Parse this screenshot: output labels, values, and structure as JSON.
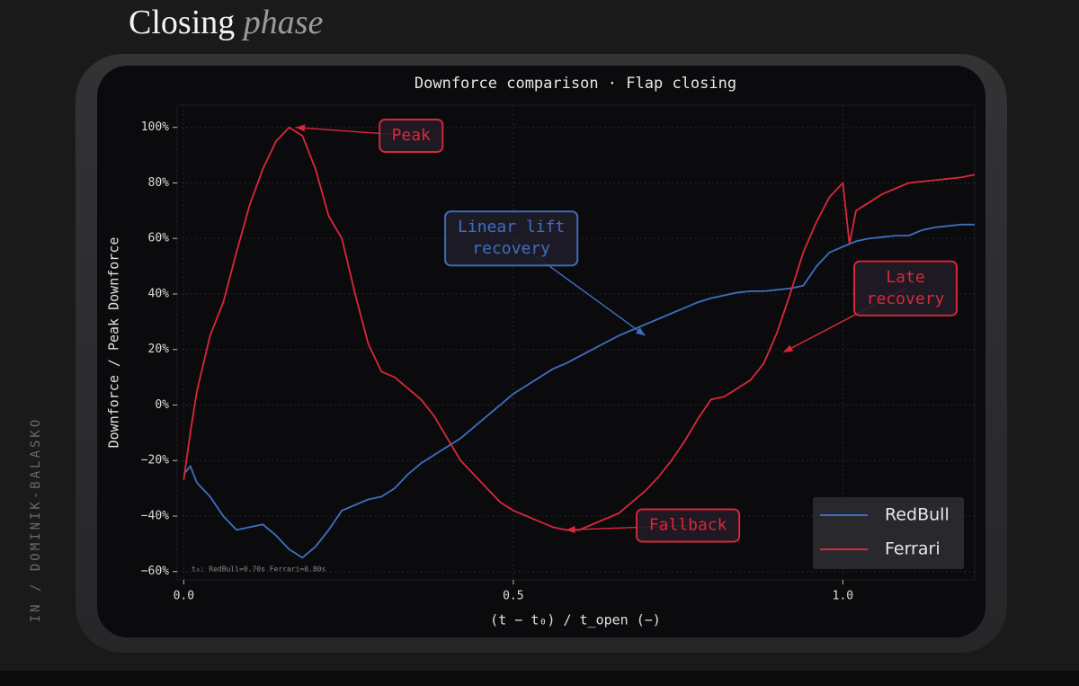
{
  "header": {
    "title": "Closing",
    "title_em": "phase"
  },
  "side_label": "IN / DOMINIK-BALASKO",
  "chart_data": {
    "type": "line",
    "title": "Downforce comparison  ·  Flap closing",
    "xlabel": "(t − t₀) / t_open  (−)",
    "ylabel": "Downforce / Peak Downforce",
    "note": "t₀: RedBull=0.70s   Ferrari=0.80s",
    "xlim": [
      -0.01,
      1.2
    ],
    "ylim": [
      -63,
      108
    ],
    "xticks": [
      {
        "value": 0,
        "label": "0.0"
      },
      0.5,
      {
        "value": 1,
        "label": "1.0"
      }
    ],
    "yticks": [
      {
        "value": -60,
        "label": "−60%"
      },
      {
        "value": -40,
        "label": "−40%"
      },
      {
        "value": -20,
        "label": "−20%"
      },
      {
        "value": 0,
        "label": "0%"
      },
      {
        "value": 20,
        "label": "20%"
      },
      {
        "value": 40,
        "label": "40%"
      },
      {
        "value": 60,
        "label": "60%"
      },
      {
        "value": 80,
        "label": "80%"
      },
      {
        "value": 100,
        "label": "100%"
      }
    ],
    "grid": true,
    "legend": "lower right",
    "x": [
      0,
      0.01,
      0.02,
      0.04,
      0.06,
      0.08,
      0.1,
      0.12,
      0.14,
      0.16,
      0.18,
      0.2,
      0.22,
      0.24,
      0.26,
      0.28,
      0.3,
      0.32,
      0.34,
      0.36,
      0.38,
      0.4,
      0.42,
      0.44,
      0.46,
      0.48,
      0.5,
      0.52,
      0.54,
      0.56,
      0.58,
      0.6,
      0.62,
      0.64,
      0.66,
      0.68,
      0.7,
      0.72,
      0.74,
      0.76,
      0.78,
      0.8,
      0.82,
      0.84,
      0.86,
      0.88,
      0.9,
      0.92,
      0.94,
      0.96,
      0.98,
      1.0,
      1.01,
      1.02,
      1.04,
      1.06,
      1.08,
      1.1,
      1.12,
      1.14,
      1.16,
      1.18,
      1.2
    ],
    "series": [
      {
        "name": "RedBull",
        "color": "#3f6fc2",
        "values": [
          -25,
          -22,
          -28,
          -33,
          -40,
          -45,
          -44,
          -43,
          -47,
          -52,
          -55,
          -51,
          -45,
          -38,
          -36,
          -34,
          -33,
          -30,
          -25,
          -21,
          -18,
          -15,
          -12,
          -8,
          -4,
          0,
          4,
          7,
          10,
          13,
          15,
          17.5,
          20,
          22.5,
          25,
          27,
          29,
          31,
          33,
          35,
          37,
          38.5,
          39.5,
          40.5,
          41,
          41,
          41.5,
          42,
          43,
          50,
          55,
          57,
          58,
          59,
          60,
          60.5,
          61,
          61,
          63,
          64,
          64.5,
          65,
          65
        ]
      },
      {
        "name": "Ferrari",
        "color": "#d9283a",
        "values": [
          -27,
          -10,
          5,
          25,
          37,
          55,
          72,
          85,
          95,
          100,
          97,
          85,
          68,
          60,
          40,
          22,
          12,
          10,
          6,
          2,
          -4,
          -12,
          -20,
          -25,
          -30,
          -35,
          -38,
          -40,
          -42,
          -44,
          -45,
          -45,
          -43,
          -41,
          -39,
          -35,
          -31,
          -26,
          -20,
          -13,
          -5,
          2,
          3,
          6,
          9,
          15,
          26,
          40,
          55,
          66,
          75,
          80,
          58,
          70,
          73,
          76,
          78,
          80,
          80.5,
          81,
          81.5,
          82,
          83
        ]
      }
    ],
    "annotations": [
      {
        "lines": [
          "Peak"
        ],
        "color": "#d9283a",
        "xy": [
          0.17,
          100
        ],
        "xytext": [
          0.345,
          97
        ]
      },
      {
        "lines": [
          "Linear lift",
          "recovery"
        ],
        "color": "#3f6fc2",
        "xy": [
          0.7,
          25
        ],
        "xytext": [
          0.497,
          60
        ]
      },
      {
        "lines": [
          "Late",
          "recovery"
        ],
        "color": "#d9283a",
        "xy": [
          0.91,
          19
        ],
        "xytext": [
          1.095,
          42
        ]
      },
      {
        "lines": [
          "Fallback"
        ],
        "color": "#d9283a",
        "xy": [
          0.58,
          -45
        ],
        "xytext": [
          0.765,
          -43.4
        ]
      }
    ]
  }
}
